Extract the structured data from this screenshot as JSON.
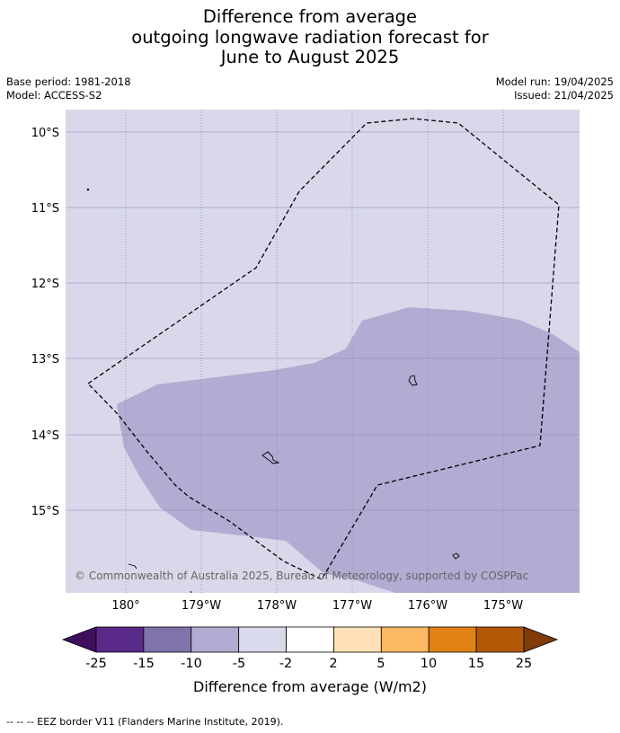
{
  "title": {
    "line1": "Difference from average",
    "line2": "outgoing longwave radiation forecast for",
    "line3": "June to August 2025"
  },
  "meta": {
    "base_period": "Base period: 1981-2018",
    "model": "Model: ACCESS-S2",
    "model_run": "Model run: 19/04/2025",
    "issued": "Issued: 21/04/2025"
  },
  "map": {
    "background_color": "#d8d8ea",
    "anomaly_fill_color": "#b2abd2",
    "gridline_color": "#8b88ad",
    "lat_labels": [
      "10°S",
      "11°S",
      "12°S",
      "13°S",
      "14°S",
      "15°S"
    ],
    "lon_labels": [
      "180°",
      "179°W",
      "178°W",
      "177°W",
      "176°W",
      "175°W"
    ],
    "credit": "© Commonwealth of Australia 2025, Bureau of Meteorology, supported by COSPPac"
  },
  "colorbar": {
    "label": "Difference from average (W/m2)",
    "ticks": [
      "-25",
      "-15",
      "-10",
      "-5",
      "-2",
      "2",
      "5",
      "10",
      "15",
      "25"
    ],
    "colors": [
      "#3f0f5e",
      "#5a2a8a",
      "#8073ac",
      "#b2abd2",
      "#d8daeb",
      "#ffffff",
      "#fee0b6",
      "#fdb863",
      "#e08214",
      "#b35806",
      "#7f3b08"
    ]
  },
  "legend": {
    "eez_text": "--  --  -- EEZ border V11 (Flanders Marine Institute, 2019)."
  }
}
